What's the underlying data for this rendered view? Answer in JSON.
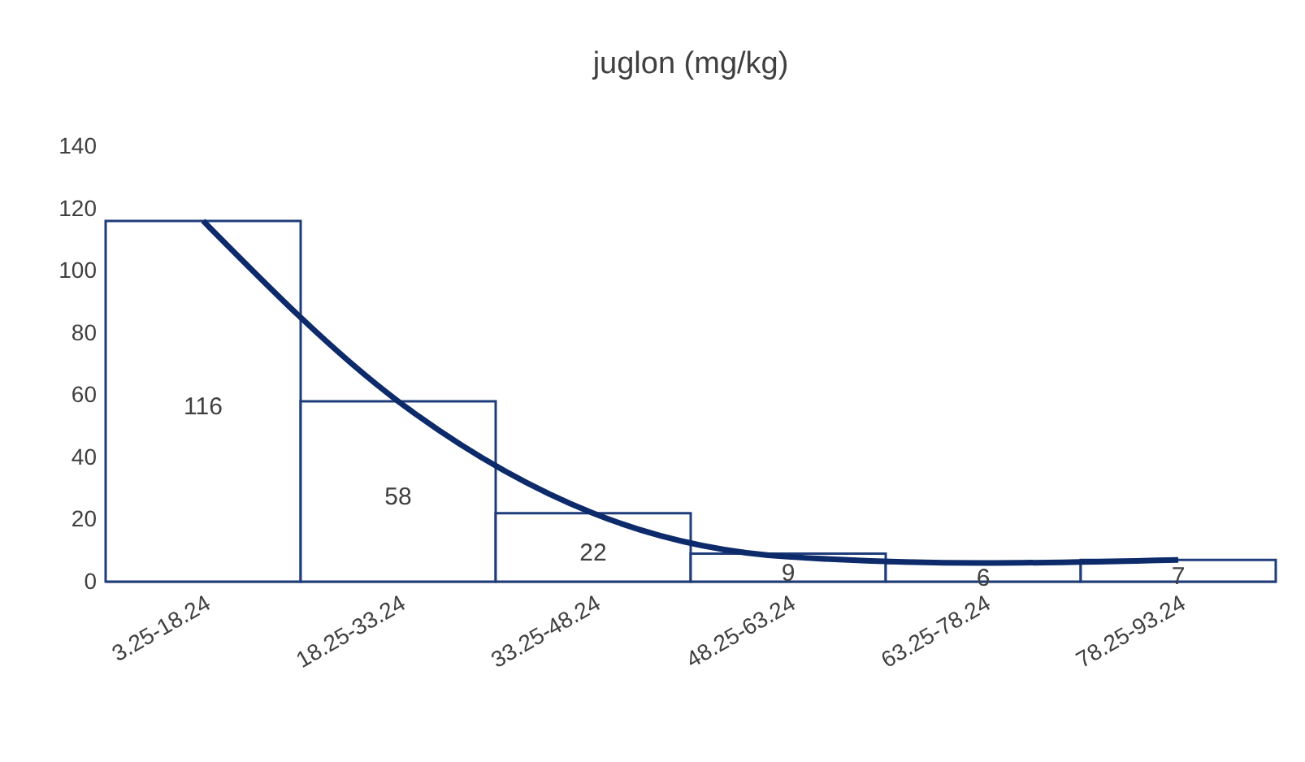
{
  "chart_data": {
    "type": "bar",
    "title": "juglon (mg/kg)",
    "categories": [
      "3.25-18.24",
      "18.25-33.24",
      "33.25-48.24",
      "48.25-63.24",
      "63.25-78.24",
      "78.25-93.24"
    ],
    "series": [
      {
        "color": "#1f3d7a",
        "values": [
          116,
          58,
          22,
          9,
          6,
          7
        ],
        "value_labels": [
          "116",
          "58",
          "22",
          "9",
          "6",
          "7"
        ]
      },
      {
        "type": "line",
        "color": "#0d2a6b",
        "values": [
          116,
          58,
          22,
          8,
          6,
          7
        ]
      }
    ],
    "ylim": [
      0,
      140
    ],
    "yticks": [
      0,
      20,
      40,
      60,
      80,
      100,
      120,
      140
    ],
    "grid": false
  }
}
